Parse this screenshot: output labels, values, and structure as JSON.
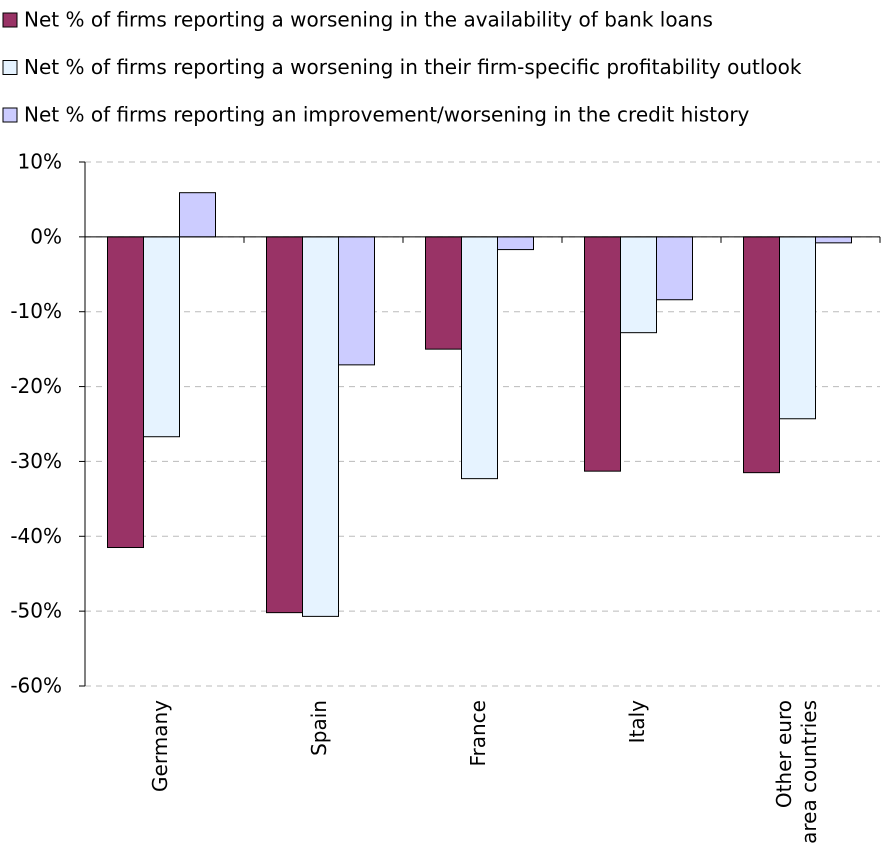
{
  "chart_data": {
    "type": "bar",
    "categories": [
      "Germany",
      "Spain",
      "France",
      "Italy",
      "Other euro\narea countries"
    ],
    "series": [
      {
        "name": "Net % of firms reporting a worsening in the availability of bank loans",
        "color": "#993366",
        "values": [
          -41.5,
          -50.2,
          -15,
          -31.3,
          -31.5
        ]
      },
      {
        "name": "Net % of firms reporting a worsening in their firm-specific profitability outlook",
        "color": "#e6f3ff",
        "values": [
          -26.7,
          -50.7,
          -32.3,
          -12.8,
          -24.3
        ]
      },
      {
        "name": "Net % of firms reporting an improvement/worsening in the credit history",
        "color": "#ccccff",
        "values": [
          5.9,
          -17.1,
          -1.7,
          -8.4,
          -0.8
        ]
      }
    ],
    "ylim": [
      -60,
      10
    ],
    "yticks": [
      {
        "value": 10,
        "label": "10%"
      },
      {
        "value": 0,
        "label": "0%"
      },
      {
        "value": -10,
        "label": "-10%"
      },
      {
        "value": -20,
        "label": "-20%"
      },
      {
        "value": -30,
        "label": "-30%"
      },
      {
        "value": -40,
        "label": "-40%"
      },
      {
        "value": -50,
        "label": "-50%"
      },
      {
        "value": -60,
        "label": "-60%"
      }
    ],
    "grid": true
  }
}
